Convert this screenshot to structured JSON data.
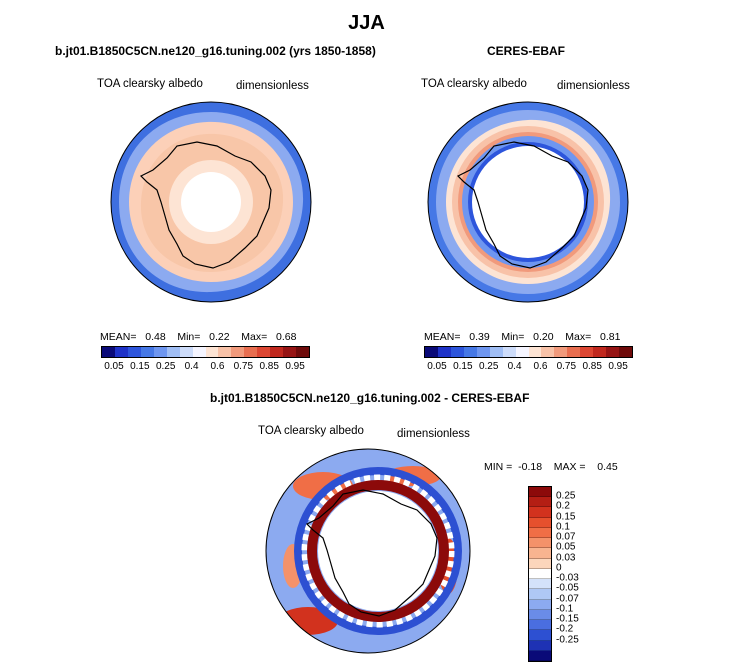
{
  "figure": {
    "title": "JJA",
    "panel1": {
      "title": "b.jt01.B1850C5CN.ne120_g16.tuning.002 (yrs 1850-1858)",
      "variable": "TOA clearsky albedo",
      "units": "dimensionless",
      "stats": {
        "mean_label": "MEAN=",
        "mean": "0.48",
        "min_label": "Min=",
        "min": "0.22",
        "max_label": "Max=",
        "max": "0.68"
      }
    },
    "panel2": {
      "title": "CERES-EBAF",
      "variable": "TOA clearsky albedo",
      "units": "dimensionless",
      "stats": {
        "mean_label": "MEAN=",
        "mean": "0.39",
        "min_label": "Min=",
        "min": "0.20",
        "max_label": "Max=",
        "max": "0.81"
      }
    },
    "panel3": {
      "title": "b.jt01.B1850C5CN.ne120_g16.tuning.002 - CERES-EBAF",
      "variable": "TOA clearsky albedo",
      "units": "dimensionless",
      "stats": {
        "min_label": "MIN =",
        "min": "-0.18",
        "max_label": "MAX =",
        "max": "0.45"
      }
    },
    "colorbar_abs": {
      "ticks": [
        "0.05",
        "0.15",
        "0.25",
        "0.4",
        "0.6",
        "0.75",
        "0.85",
        "0.95"
      ],
      "colors": [
        "#0a0a78",
        "#1e32c8",
        "#2d55dc",
        "#4678e6",
        "#6e96f0",
        "#a0bef5",
        "#cddcfa",
        "#f5f5ff",
        "#fde4d4",
        "#f8c2a8",
        "#f19a7c",
        "#e86e50",
        "#dc4632",
        "#c0281e",
        "#961414",
        "#6e0a0a"
      ]
    },
    "colorbar_diff": {
      "ticks": [
        "0.25",
        "0.2",
        "0.15",
        "0.1",
        "0.07",
        "0.05",
        "0.03",
        "0",
        "-0.03",
        "-0.05",
        "-0.07",
        "-0.1",
        "-0.15",
        "-0.2",
        "-0.25"
      ],
      "colors": [
        "#8c0a0a",
        "#b41e14",
        "#d2321e",
        "#e6502d",
        "#f06e46",
        "#f4926a",
        "#f8b490",
        "#fcd6bc",
        "#ffffff",
        "#d4e2fa",
        "#afc8f5",
        "#8caaf0",
        "#6a8ce8",
        "#4a6ee0",
        "#2d50d2",
        "#1e32b4",
        "#0a0a78"
      ]
    }
  }
}
